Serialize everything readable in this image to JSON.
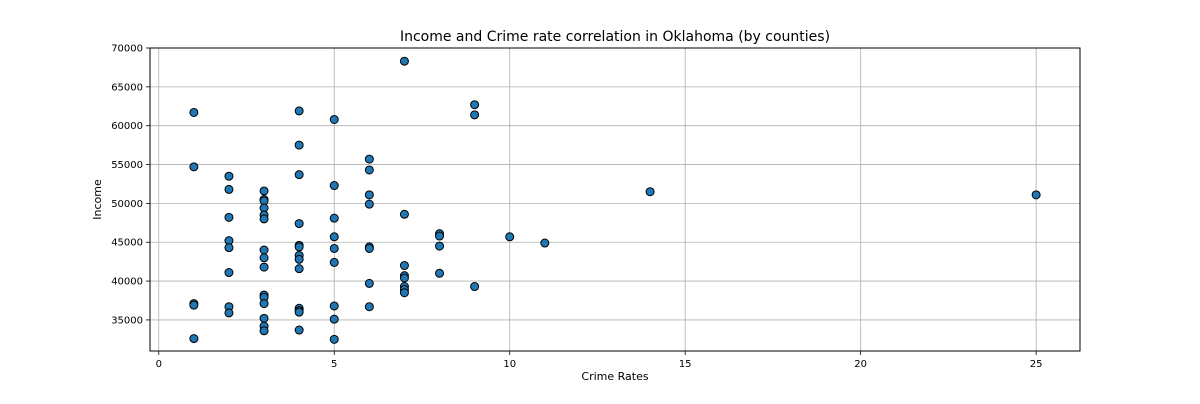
{
  "chart_data": {
    "type": "scatter",
    "title": "Income and Crime rate correlation in Oklahoma (by counties)",
    "xlabel": "Crime Rates",
    "ylabel": "Income",
    "xlim": [
      -0.25,
      26.25
    ],
    "ylim": [
      31000,
      70000
    ],
    "xticks": [
      0,
      5,
      10,
      15,
      20,
      25
    ],
    "yticks": [
      35000,
      40000,
      45000,
      50000,
      55000,
      60000,
      65000,
      70000
    ],
    "grid": true,
    "marker_color": "#1f77b4",
    "marker_edge_color": "#000000",
    "points": [
      {
        "x": 1,
        "y": 61700
      },
      {
        "x": 1,
        "y": 54700
      },
      {
        "x": 1,
        "y": 37100
      },
      {
        "x": 1,
        "y": 36900
      },
      {
        "x": 1,
        "y": 32600
      },
      {
        "x": 2,
        "y": 53500
      },
      {
        "x": 2,
        "y": 51800
      },
      {
        "x": 2,
        "y": 48200
      },
      {
        "x": 2,
        "y": 45200
      },
      {
        "x": 2,
        "y": 44300
      },
      {
        "x": 2,
        "y": 41100
      },
      {
        "x": 2,
        "y": 36700
      },
      {
        "x": 2,
        "y": 35900
      },
      {
        "x": 3,
        "y": 51600
      },
      {
        "x": 3,
        "y": 50500
      },
      {
        "x": 3,
        "y": 50300
      },
      {
        "x": 3,
        "y": 49400
      },
      {
        "x": 3,
        "y": 48500
      },
      {
        "x": 3,
        "y": 48000
      },
      {
        "x": 3,
        "y": 44000
      },
      {
        "x": 3,
        "y": 43000
      },
      {
        "x": 3,
        "y": 41800
      },
      {
        "x": 3,
        "y": 38200
      },
      {
        "x": 3,
        "y": 37900
      },
      {
        "x": 3,
        "y": 37100
      },
      {
        "x": 3,
        "y": 35200
      },
      {
        "x": 3,
        "y": 34200
      },
      {
        "x": 3,
        "y": 33600
      },
      {
        "x": 4,
        "y": 61900
      },
      {
        "x": 4,
        "y": 57500
      },
      {
        "x": 4,
        "y": 53700
      },
      {
        "x": 4,
        "y": 47400
      },
      {
        "x": 4,
        "y": 44600
      },
      {
        "x": 4,
        "y": 44400
      },
      {
        "x": 4,
        "y": 43300
      },
      {
        "x": 4,
        "y": 42800
      },
      {
        "x": 4,
        "y": 41600
      },
      {
        "x": 4,
        "y": 36500
      },
      {
        "x": 4,
        "y": 36200
      },
      {
        "x": 4,
        "y": 36000
      },
      {
        "x": 4,
        "y": 33700
      },
      {
        "x": 5,
        "y": 60800
      },
      {
        "x": 5,
        "y": 52300
      },
      {
        "x": 5,
        "y": 48100
      },
      {
        "x": 5,
        "y": 45700
      },
      {
        "x": 5,
        "y": 44200
      },
      {
        "x": 5,
        "y": 42400
      },
      {
        "x": 5,
        "y": 36800
      },
      {
        "x": 5,
        "y": 35100
      },
      {
        "x": 5,
        "y": 32500
      },
      {
        "x": 6,
        "y": 55700
      },
      {
        "x": 6,
        "y": 54300
      },
      {
        "x": 6,
        "y": 51100
      },
      {
        "x": 6,
        "y": 49900
      },
      {
        "x": 6,
        "y": 44400
      },
      {
        "x": 6,
        "y": 44200
      },
      {
        "x": 6,
        "y": 39700
      },
      {
        "x": 6,
        "y": 36700
      },
      {
        "x": 7,
        "y": 68300
      },
      {
        "x": 7,
        "y": 48600
      },
      {
        "x": 7,
        "y": 42000
      },
      {
        "x": 7,
        "y": 40700
      },
      {
        "x": 7,
        "y": 40400
      },
      {
        "x": 7,
        "y": 39300
      },
      {
        "x": 7,
        "y": 38900
      },
      {
        "x": 7,
        "y": 38500
      },
      {
        "x": 8,
        "y": 46100
      },
      {
        "x": 8,
        "y": 45800
      },
      {
        "x": 8,
        "y": 44500
      },
      {
        "x": 8,
        "y": 41000
      },
      {
        "x": 9,
        "y": 62700
      },
      {
        "x": 9,
        "y": 61400
      },
      {
        "x": 9,
        "y": 39300
      },
      {
        "x": 10,
        "y": 45700
      },
      {
        "x": 11,
        "y": 44900
      },
      {
        "x": 14,
        "y": 51500
      },
      {
        "x": 25,
        "y": 51100
      }
    ]
  }
}
